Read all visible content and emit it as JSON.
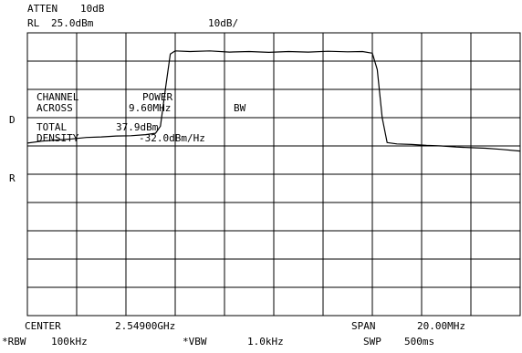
{
  "header": {
    "atten_label": "ATTEN",
    "atten_value": "10dB",
    "rl_label": "RL",
    "rl_value": "25.0dBm",
    "scale": "10dB/"
  },
  "markers": {
    "d": "D",
    "r": "R"
  },
  "measurement": {
    "line1_a": "CHANNEL",
    "line1_b": "POWER",
    "line2_a": "ACROSS",
    "line2_b": "9.60MHz",
    "line2_c": "BW",
    "line3_a": "TOTAL",
    "line3_b": "37.9dBm",
    "line4_a": "DENSITY",
    "line4_b": "-32.0dBm/Hz"
  },
  "footer": {
    "center_label": "CENTER",
    "center_value": "2.54900GHz",
    "span_label": "SPAN",
    "span_value": "20.00MHz",
    "rbw_label": "*RBW",
    "rbw_value": "100kHz",
    "vbw_label": "*VBW",
    "vbw_value": "1.0kHz",
    "swp_label": "SWP",
    "swp_value": "500ms"
  },
  "chart_data": {
    "type": "line",
    "x_unit": "MHz",
    "y_unit": "dBm",
    "xlim": [
      2539.0,
      2559.0
    ],
    "ylim": [
      -75.0,
      25.0
    ],
    "grid": true,
    "x_divisions": 10,
    "y_divisions": 10,
    "series": [
      {
        "points": [
          [
            2539.0,
            -14.0
          ],
          [
            2539.6,
            -13.3
          ],
          [
            2540.2,
            -12.9
          ],
          [
            2540.8,
            -12.5
          ],
          [
            2541.4,
            -12.0
          ],
          [
            2542.0,
            -11.8
          ],
          [
            2542.6,
            -11.5
          ],
          [
            2543.2,
            -11.4
          ],
          [
            2543.8,
            -11.0
          ],
          [
            2544.2,
            -10.5
          ],
          [
            2544.4,
            -8.0
          ],
          [
            2544.6,
            5.0
          ],
          [
            2544.8,
            17.5
          ],
          [
            2545.0,
            18.6
          ],
          [
            2545.6,
            18.4
          ],
          [
            2546.4,
            18.6
          ],
          [
            2547.2,
            18.2
          ],
          [
            2548.0,
            18.4
          ],
          [
            2548.8,
            18.1
          ],
          [
            2549.6,
            18.4
          ],
          [
            2550.4,
            18.2
          ],
          [
            2551.2,
            18.5
          ],
          [
            2552.0,
            18.3
          ],
          [
            2552.6,
            18.4
          ],
          [
            2553.0,
            17.8
          ],
          [
            2553.2,
            12.0
          ],
          [
            2553.4,
            -5.0
          ],
          [
            2553.6,
            -13.8
          ],
          [
            2554.0,
            -14.3
          ],
          [
            2554.6,
            -14.5
          ],
          [
            2555.2,
            -14.8
          ],
          [
            2555.8,
            -15.0
          ],
          [
            2556.4,
            -15.4
          ],
          [
            2557.0,
            -15.6
          ],
          [
            2557.6,
            -15.8
          ],
          [
            2558.2,
            -16.2
          ],
          [
            2559.0,
            -16.8
          ]
        ]
      }
    ]
  }
}
